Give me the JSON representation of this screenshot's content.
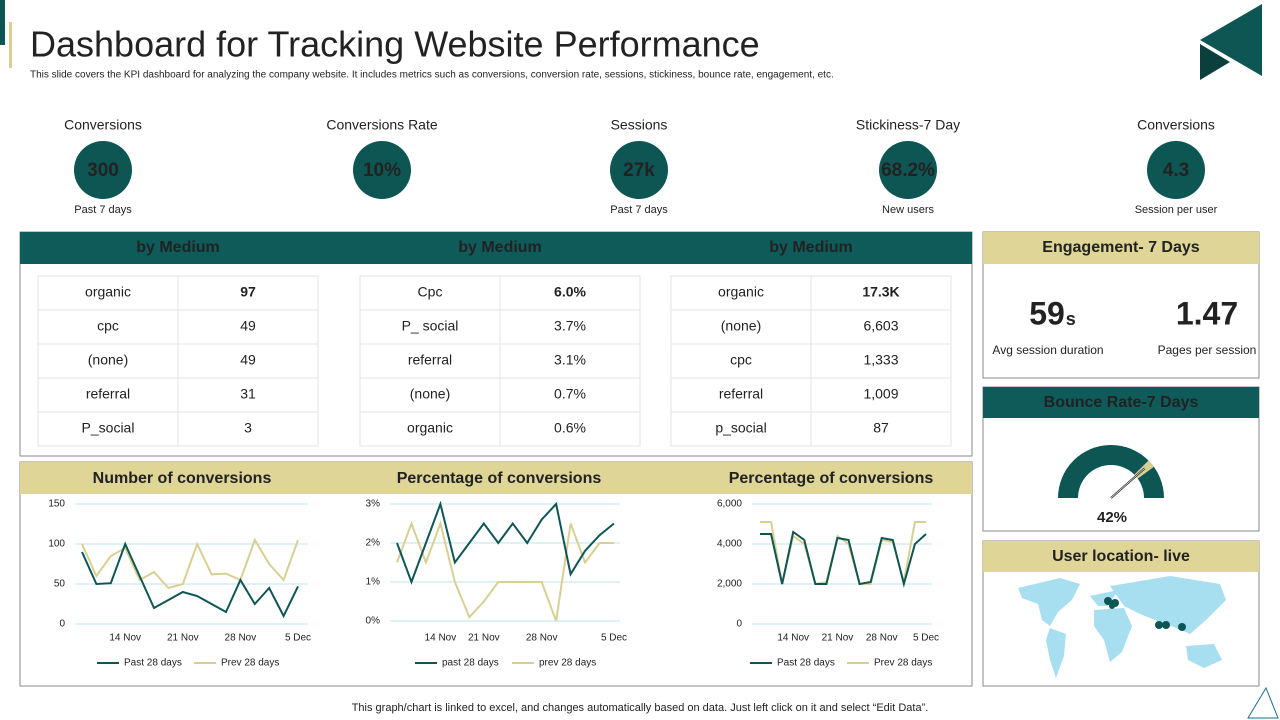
{
  "header": {
    "title": "Dashboard for Tracking Website Performance",
    "subtitle": "This slide covers the KPI dashboard for analyzing the company website. It includes metrics such as conversions, conversion rate, sessions, stickiness, bounce rate, engagement, etc."
  },
  "kpis": [
    {
      "label": "Conversions",
      "value": "300",
      "note": "Past 7 days"
    },
    {
      "label": "Conversions Rate",
      "value": "10%"
    },
    {
      "label": "Sessions",
      "value": "27k",
      "note": "Past 7 days"
    },
    {
      "label": "Stickiness-7 Day",
      "value": "68.2%",
      "note": "New users"
    },
    {
      "label": "Conversions",
      "value": "4.3",
      "note": "Session per user"
    }
  ],
  "tables": [
    {
      "header": "by Medium",
      "rows": [
        [
          "organic",
          "97"
        ],
        [
          "cpc",
          "49"
        ],
        [
          "(none)",
          "49"
        ],
        [
          "referral",
          "31"
        ],
        [
          "P_social",
          "3"
        ]
      ]
    },
    {
      "header": "by Medium",
      "rows": [
        [
          "Cpc",
          "6.0%"
        ],
        [
          "P_ social",
          "3.7%"
        ],
        [
          "referral",
          "3.1%"
        ],
        [
          "(none)",
          "0.7%"
        ],
        [
          "organic",
          "0.6%"
        ]
      ]
    },
    {
      "header": "by Medium",
      "rows": [
        [
          "organic",
          "17.3K"
        ],
        [
          "(none)",
          "6,603"
        ],
        [
          "cpc",
          "1,333"
        ],
        [
          "referral",
          "1,009"
        ],
        [
          "p_social",
          "87"
        ]
      ]
    }
  ],
  "engagement": {
    "title": "Engagement- 7 Days",
    "metrics": [
      {
        "value": "59",
        "unit": "s",
        "label": "Avg session duration"
      },
      {
        "value": "1.47",
        "label": "Pages per session"
      }
    ]
  },
  "bounce_rate": {
    "title": "Bounce Rate-7 Days",
    "value": 42,
    "value_label": "42%"
  },
  "user_location": {
    "title": "User location- live"
  },
  "chart_data": [
    {
      "type": "line",
      "title": "Number of conversions",
      "categories": [
        null,
        null,
        null,
        "14 Nov",
        null,
        null,
        null,
        "21 Nov",
        null,
        null,
        null,
        "28 Nov",
        null,
        null,
        null,
        "5 Dec"
      ],
      "ylim": [
        0,
        150
      ],
      "yticks": [
        0,
        50,
        100,
        150
      ],
      "grid": true,
      "series": [
        {
          "name": "Past 28 days",
          "color": "#0e5654",
          "values": [
            90,
            50,
            51,
            100,
            60,
            20,
            30,
            40,
            35,
            25,
            15,
            55,
            25,
            45,
            10,
            47
          ]
        },
        {
          "name": "Prev 28 days",
          "color": "#d8cf92",
          "values": [
            100,
            60,
            85,
            95,
            55,
            65,
            45,
            50,
            100,
            62,
            63,
            55,
            105,
            75,
            55,
            105
          ]
        }
      ]
    },
    {
      "type": "line",
      "title": "Percentage of conversions",
      "categories": [
        null,
        null,
        null,
        "14 Nov",
        null,
        null,
        "21 Nov",
        null,
        null,
        null,
        "28 Nov",
        null,
        null,
        null,
        null,
        "5 Dec"
      ],
      "ylim": [
        0,
        3
      ],
      "yticks": [
        {
          "value": 0,
          "label": "0%"
        },
        {
          "value": 1,
          "label": "1%"
        },
        {
          "value": 2,
          "label": "2%"
        },
        {
          "value": 3,
          "label": "3%"
        }
      ],
      "grid": true,
      "series": [
        {
          "name": "past 28 days",
          "color": "#0e5654",
          "values": [
            2.0,
            1.0,
            2.0,
            3.0,
            1.5,
            2.0,
            2.5,
            2.0,
            2.5,
            2.0,
            2.6,
            3.0,
            1.2,
            1.8,
            2.2,
            2.5
          ]
        },
        {
          "name": "prev 28 days",
          "color": "#d8cf92",
          "values": [
            1.5,
            2.5,
            1.5,
            2.5,
            1.0,
            0.1,
            0.5,
            1.0,
            1.0,
            1.0,
            1.0,
            0.0,
            2.5,
            1.5,
            2.0,
            2.0
          ]
        }
      ]
    },
    {
      "type": "line",
      "title": "Percentage of conversions",
      "categories": [
        null,
        null,
        null,
        "14 Nov",
        null,
        null,
        null,
        "21 Nov",
        null,
        null,
        null,
        "28 Nov",
        null,
        null,
        null,
        "5 Dec"
      ],
      "ylim": [
        0,
        6000
      ],
      "yticks": [
        0,
        {
          "value": 2000,
          "label": "2,000"
        },
        {
          "value": 4000,
          "label": "4,000"
        },
        {
          "value": 6000,
          "label": "6,000"
        }
      ],
      "grid": true,
      "series": [
        {
          "name": "Past 28 days",
          "color": "#0e5654",
          "values": [
            4500,
            4500,
            2000,
            4600,
            4200,
            2000,
            2000,
            4300,
            4200,
            2000,
            2100,
            4300,
            4200,
            2000,
            4000,
            4500
          ]
        },
        {
          "name": "Prev 28 days",
          "color": "#d8cf92",
          "values": [
            5100,
            5100,
            2000,
            4400,
            4000,
            2000,
            2100,
            4400,
            4000,
            2000,
            2000,
            4200,
            4100,
            2100,
            5100,
            5100
          ]
        }
      ]
    }
  ],
  "footer": "This graph/chart is linked to excel, and changes automatically based on data. Just left click on it and select “Edit Data”."
}
